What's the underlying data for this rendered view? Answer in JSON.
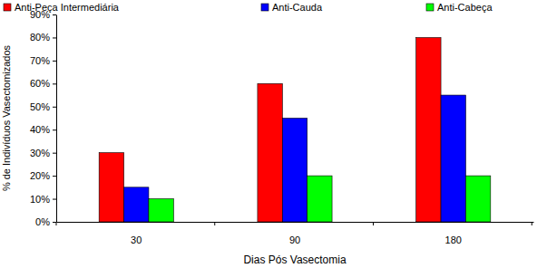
{
  "chart_data": {
    "type": "bar",
    "x_label": "Dias Pós Vasectomia",
    "y_label": "% de Indivíduos Vasectomizados",
    "categories": [
      "30",
      "90",
      "180"
    ],
    "series": [
      {
        "name": "Anti-Peça Intermediária",
        "color": "#ff0000",
        "values": [
          30,
          60,
          80
        ]
      },
      {
        "name": "Anti-Cauda",
        "color": "#0000ff",
        "values": [
          15,
          45,
          55
        ]
      },
      {
        "name": "Anti-Cabeça",
        "color": "#00ff00",
        "values": [
          10,
          20,
          20
        ]
      }
    ],
    "ylim": [
      0,
      90
    ],
    "yticks": [
      {
        "value": 0,
        "label": "0%"
      },
      {
        "value": 10,
        "label": "10%"
      },
      {
        "value": 20,
        "label": "20%"
      },
      {
        "value": 30,
        "label": "30%"
      },
      {
        "value": 40,
        "label": "40%"
      },
      {
        "value": 50,
        "label": "50%"
      },
      {
        "value": 60,
        "label": "60%"
      },
      {
        "value": 70,
        "label": "70%"
      },
      {
        "value": 80,
        "label": "80%"
      },
      {
        "value": 90,
        "label": "90%"
      }
    ],
    "grid": false,
    "legend": "top"
  }
}
